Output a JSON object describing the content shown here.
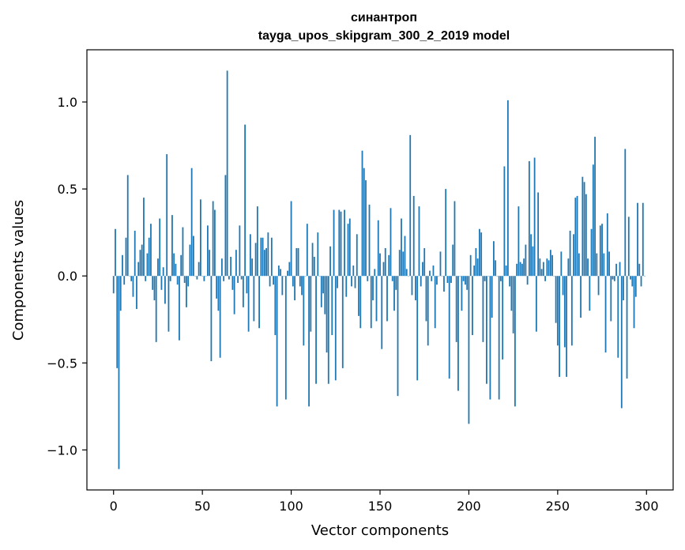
{
  "chart_data": {
    "type": "bar",
    "title": "синантроп",
    "subtitle": "tayga_upos_skipgram_300_2_2019 model",
    "xlabel": "Vector components",
    "ylabel": "Components values",
    "xlim": [
      -15,
      315
    ],
    "ylim": [
      -1.23,
      1.3
    ],
    "xticks": [
      0,
      50,
      100,
      150,
      200,
      250,
      300
    ],
    "yticks": [
      -1.0,
      -0.5,
      0.0,
      0.5,
      1.0
    ],
    "ytick_labels": [
      "−1.0",
      "−0.5",
      "0.0",
      "0.5",
      "1.0"
    ],
    "grid": false,
    "bar_color": "#1f77b4",
    "x": "indices 0..299",
    "values": [
      -0.1,
      0.27,
      -0.53,
      -1.11,
      -0.2,
      0.12,
      -0.05,
      0.22,
      0.58,
      0.0,
      -0.03,
      -0.12,
      0.26,
      -0.19,
      0.08,
      0.15,
      0.18,
      0.45,
      -0.03,
      0.13,
      0.22,
      0.3,
      -0.08,
      -0.14,
      -0.38,
      0.1,
      0.33,
      -0.08,
      0.05,
      -0.16,
      0.7,
      -0.32,
      -0.03,
      0.35,
      0.13,
      0.07,
      -0.05,
      -0.37,
      0.12,
      0.28,
      -0.04,
      -0.18,
      -0.06,
      0.18,
      0.62,
      0.23,
      0.0,
      -0.02,
      0.08,
      0.44,
      0.0,
      -0.03,
      0.0,
      0.29,
      0.15,
      -0.49,
      0.43,
      0.38,
      -0.13,
      -0.2,
      -0.47,
      0.1,
      -0.03,
      0.58,
      1.18,
      -0.02,
      0.11,
      -0.08,
      -0.22,
      0.15,
      -0.04,
      0.29,
      -0.02,
      -0.18,
      0.87,
      -0.1,
      -0.32,
      0.24,
      0.1,
      -0.26,
      0.19,
      0.4,
      -0.3,
      0.22,
      0.22,
      0.15,
      0.16,
      0.25,
      -0.06,
      0.22,
      -0.05,
      -0.34,
      -0.75,
      0.06,
      0.04,
      -0.11,
      0.0,
      -0.71,
      0.03,
      0.08,
      0.43,
      -0.06,
      -0.14,
      0.16,
      0.16,
      -0.06,
      -0.11,
      -0.4,
      0.0,
      0.3,
      -0.75,
      -0.32,
      0.19,
      0.11,
      -0.62,
      0.25,
      0.0,
      -0.18,
      -0.1,
      -0.22,
      -0.44,
      -0.62,
      0.17,
      -0.34,
      0.38,
      -0.6,
      -0.07,
      0.38,
      0.37,
      -0.53,
      0.38,
      -0.12,
      0.3,
      0.33,
      -0.06,
      0.06,
      -0.07,
      0.24,
      -0.23,
      -0.3,
      0.72,
      0.62,
      0.55,
      -0.03,
      0.41,
      -0.3,
      -0.14,
      0.04,
      -0.26,
      0.32,
      0.13,
      -0.42,
      0.08,
      0.16,
      -0.26,
      0.12,
      0.39,
      -0.03,
      -0.2,
      -0.08,
      -0.69,
      0.15,
      0.33,
      0.14,
      0.23,
      0.04,
      0.0,
      0.81,
      -0.11,
      0.46,
      -0.14,
      -0.6,
      0.4,
      -0.06,
      0.08,
      0.16,
      -0.26,
      -0.4,
      0.03,
      -0.03,
      0.06,
      -0.3,
      -0.05,
      0.0,
      0.14,
      0.0,
      -0.09,
      0.5,
      -0.04,
      -0.59,
      -0.04,
      0.18,
      0.43,
      -0.38,
      -0.66,
      0.0,
      -0.2,
      -0.03,
      -0.05,
      -0.08,
      -0.85,
      0.12,
      -0.34,
      0.06,
      0.16,
      0.1,
      0.27,
      0.25,
      -0.38,
      -0.03,
      -0.62,
      0.0,
      -0.71,
      -0.24,
      0.2,
      0.09,
      0.0,
      -0.71,
      -0.03,
      -0.48,
      0.63,
      0.06,
      1.01,
      -0.06,
      -0.2,
      -0.33,
      -0.75,
      0.07,
      0.4,
      0.08,
      0.07,
      0.1,
      0.18,
      -0.05,
      0.66,
      0.24,
      0.17,
      0.68,
      -0.32,
      0.48,
      0.1,
      0.04,
      0.08,
      -0.03,
      0.1,
      0.09,
      0.15,
      0.12,
      0.0,
      -0.27,
      -0.4,
      -0.58,
      0.14,
      -0.11,
      -0.41,
      -0.58,
      0.1,
      0.26,
      -0.4,
      0.24,
      0.45,
      0.46,
      0.13,
      -0.24,
      0.57,
      0.54,
      0.47,
      0.1,
      -0.2,
      0.27,
      0.64,
      0.8,
      0.13,
      -0.11,
      0.29,
      0.3,
      0.13,
      -0.44,
      0.36,
      0.14,
      -0.26,
      -0.02,
      -0.03,
      0.07,
      -0.47,
      0.08,
      -0.76,
      -0.14,
      0.73,
      -0.59,
      0.34,
      -0.02,
      -0.06,
      -0.3,
      -0.12,
      0.42,
      0.07,
      -0.06,
      0.42,
      0.0
    ]
  }
}
